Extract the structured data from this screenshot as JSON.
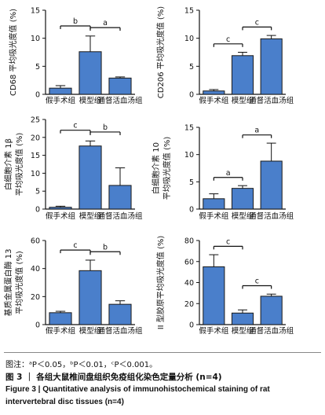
{
  "figure": {
    "note": "图注：ᵃP＜0.05，ᵇP＜0.01，ᶜP＜0.001。",
    "title_zh": "图 3 ｜ 各组大鼠椎间盘组织免疫组化染色定量分析 (n=4)",
    "title_en_line1": "Figure 3  |  Quantitative analysis of immunohistochemical staining of rat",
    "title_en_line2": "intervertebral disc tissues (n=4)"
  },
  "colors": {
    "bar": "#4a7fcb",
    "bar_stroke": "#1a1a1a",
    "axis": "#111111"
  },
  "chart_data": [
    {
      "type": "bar",
      "ylabel": "CD68 平均吸光度值 (%)",
      "categories": [
        "假手术组",
        "模型组",
        "通督活血汤组"
      ],
      "values": [
        1.1,
        7.6,
        2.9
      ],
      "errors": [
        0.45,
        2.8,
        0.2
      ],
      "ylim": [
        0,
        15
      ],
      "yticks": [
        0,
        5,
        10,
        15
      ],
      "brackets": [
        {
          "from": 0,
          "to": 1,
          "label": "b"
        },
        {
          "from": 1,
          "to": 2,
          "label": "a"
        }
      ]
    },
    {
      "type": "bar",
      "ylabel": "CD206 平均吸光度值 (%)",
      "categories": [
        "假手术组",
        "模型组",
        "通督活血汤组"
      ],
      "values": [
        0.6,
        6.9,
        9.9
      ],
      "errors": [
        0.25,
        0.6,
        0.6
      ],
      "ylim": [
        0,
        15
      ],
      "yticks": [
        0,
        5,
        10,
        15
      ],
      "brackets": [
        {
          "from": 0,
          "to": 1,
          "label": "c"
        },
        {
          "from": 1,
          "to": 2,
          "label": "c"
        }
      ]
    },
    {
      "type": "bar",
      "ylabel_line1": "白细胞介素 1β",
      "ylabel_line2": "平均吸光度值 (%)",
      "categories": [
        "假手术组",
        "模型组",
        "通督活血汤组"
      ],
      "values": [
        0.5,
        17.6,
        6.6
      ],
      "errors": [
        0.3,
        1.4,
        4.9
      ],
      "ylim": [
        0,
        25
      ],
      "yticks": [
        0,
        5,
        10,
        15,
        20,
        25
      ],
      "brackets": [
        {
          "from": 0,
          "to": 1,
          "label": "c"
        },
        {
          "from": 1,
          "to": 2,
          "label": "b"
        }
      ]
    },
    {
      "type": "bar",
      "ylabel_line1": "白细胞介素 10",
      "ylabel_line2": "平均吸光度值 (%)",
      "categories": [
        "假手术组",
        "模型组",
        "通督活血汤组"
      ],
      "values": [
        1.9,
        3.8,
        8.8
      ],
      "errors": [
        0.9,
        0.5,
        3.3
      ],
      "ylim": [
        0,
        15
      ],
      "yticks": [
        0,
        5,
        10,
        15
      ],
      "brackets": [
        {
          "from": 0,
          "to": 1,
          "label": "a"
        },
        {
          "from": 1,
          "to": 2,
          "label": "a"
        }
      ]
    },
    {
      "type": "bar",
      "ylabel_line1": "基质金属蛋白酶 13",
      "ylabel_line2": "平均吸光度值 (%)",
      "categories": [
        "假手术组",
        "模型组",
        "通督活血汤组"
      ],
      "values": [
        8.5,
        38.5,
        14.5
      ],
      "errors": [
        1.0,
        7.5,
        2.5
      ],
      "ylim": [
        0,
        60
      ],
      "yticks": [
        0,
        20,
        40,
        60
      ],
      "brackets": [
        {
          "from": 0,
          "to": 1,
          "label": "c"
        },
        {
          "from": 1,
          "to": 2,
          "label": "b"
        }
      ]
    },
    {
      "type": "bar",
      "ylabel": "II 型胶原平均吸光度值 (%)",
      "categories": [
        "假手术组",
        "模型组",
        "通督活血汤组"
      ],
      "values": [
        55,
        11,
        27
      ],
      "errors": [
        11.5,
        3,
        2
      ],
      "ylim": [
        0,
        80
      ],
      "yticks": [
        0,
        20,
        40,
        60,
        80
      ],
      "brackets": [
        {
          "from": 0,
          "to": 1,
          "label": "c"
        },
        {
          "from": 1,
          "to": 2,
          "label": "c"
        }
      ]
    }
  ]
}
